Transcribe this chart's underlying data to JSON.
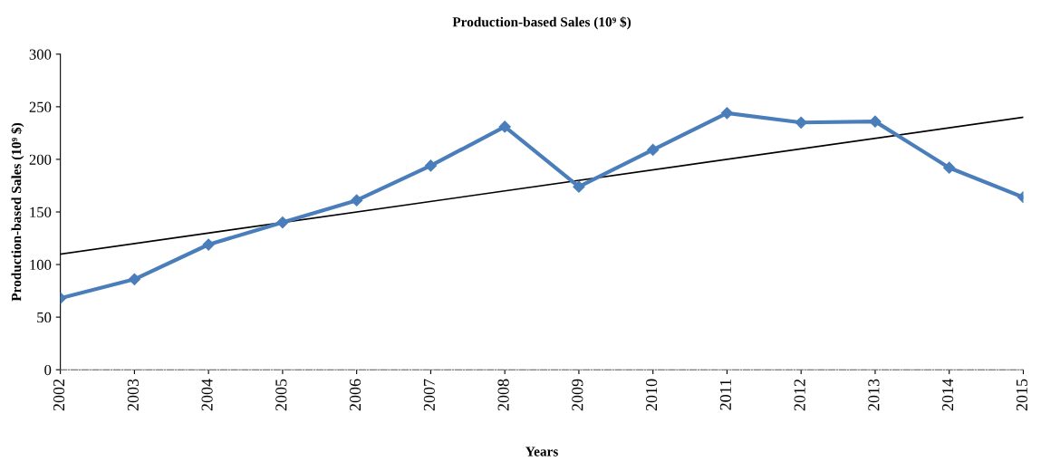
{
  "chart_data": {
    "type": "line",
    "title": "Production-based Sales (10⁹ $)",
    "xlabel": "Years",
    "ylabel": "Production-based Sales (10⁹ $)",
    "x": [
      2002,
      2003,
      2004,
      2005,
      2006,
      2007,
      2008,
      2009,
      2010,
      2011,
      2012,
      2013,
      2014,
      2015
    ],
    "series": [
      {
        "color": "#4a7ebb",
        "marker": "diamond",
        "values": [
          68,
          86,
          119,
          140,
          161,
          194,
          231,
          174,
          209,
          244,
          235,
          236,
          192,
          164
        ]
      },
      {
        "type": "line",
        "color": "#000000",
        "marker": "none",
        "x": [
          2002,
          2015
        ],
        "values": [
          110,
          240
        ]
      }
    ],
    "xlim": [
      2002,
      2015
    ],
    "xticks": [
      2002,
      2003,
      2004,
      2005,
      2006,
      2007,
      2008,
      2009,
      2010,
      2011,
      2012,
      2013,
      2014,
      2015
    ],
    "ylim": [
      0,
      300
    ],
    "yticks": [
      0,
      50,
      100,
      150,
      200,
      250,
      300
    ],
    "grid": false
  }
}
